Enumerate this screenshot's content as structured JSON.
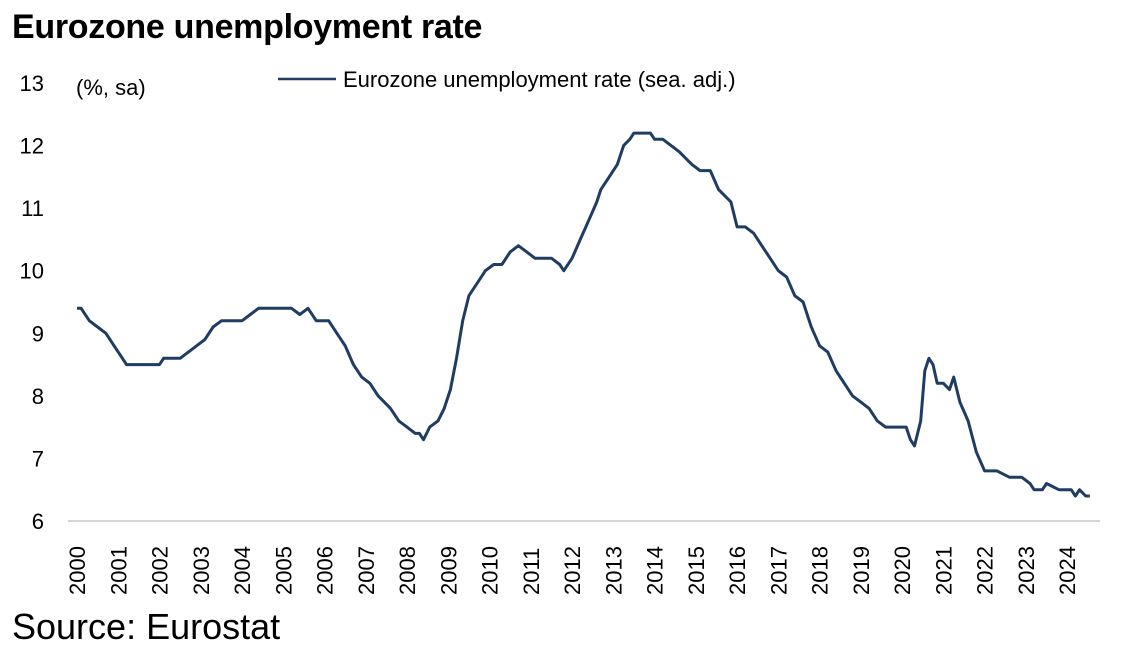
{
  "title": "Eurozone unemployment rate",
  "source": "Source: Eurostat",
  "chart_data": {
    "type": "line",
    "title": "Eurozone unemployment rate",
    "unit_label": "(%, sa)",
    "ylim": [
      6,
      13
    ],
    "y_ticks": [
      "6",
      "7",
      "8",
      "9",
      "10",
      "11",
      "12",
      "13"
    ],
    "x_ticks": [
      "2000",
      "2001",
      "2002",
      "2003",
      "2004",
      "2005",
      "2006",
      "2007",
      "2008",
      "2009",
      "2010",
      "2011",
      "2012",
      "2013",
      "2014",
      "2015",
      "2016",
      "2017",
      "2018",
      "2019",
      "2020",
      "2021",
      "2022",
      "2023",
      "2024"
    ],
    "grid": false,
    "legend_position": "top-center",
    "series": [
      {
        "name": "Eurozone unemployment rate (sea. adj.)",
        "color": "#1f3d63",
        "points": [
          [
            2000.0,
            9.4
          ],
          [
            2000.1,
            9.4
          ],
          [
            2000.3,
            9.2
          ],
          [
            2000.5,
            9.1
          ],
          [
            2000.7,
            9.0
          ],
          [
            2000.9,
            8.8
          ],
          [
            2001.1,
            8.6
          ],
          [
            2001.2,
            8.5
          ],
          [
            2001.5,
            8.5
          ],
          [
            2001.9,
            8.5
          ],
          [
            2002.0,
            8.5
          ],
          [
            2002.1,
            8.6
          ],
          [
            2002.5,
            8.6
          ],
          [
            2002.7,
            8.7
          ],
          [
            2002.9,
            8.8
          ],
          [
            2003.1,
            8.9
          ],
          [
            2003.3,
            9.1
          ],
          [
            2003.5,
            9.2
          ],
          [
            2003.8,
            9.2
          ],
          [
            2004.0,
            9.2
          ],
          [
            2004.2,
            9.3
          ],
          [
            2004.4,
            9.4
          ],
          [
            2004.8,
            9.4
          ],
          [
            2005.0,
            9.4
          ],
          [
            2005.2,
            9.4
          ],
          [
            2005.4,
            9.3
          ],
          [
            2005.6,
            9.4
          ],
          [
            2005.8,
            9.2
          ],
          [
            2006.1,
            9.2
          ],
          [
            2006.3,
            9.0
          ],
          [
            2006.5,
            8.8
          ],
          [
            2006.7,
            8.5
          ],
          [
            2006.9,
            8.3
          ],
          [
            2007.1,
            8.2
          ],
          [
            2007.3,
            8.0
          ],
          [
            2007.6,
            7.8
          ],
          [
            2007.8,
            7.6
          ],
          [
            2008.0,
            7.5
          ],
          [
            2008.2,
            7.4
          ],
          [
            2008.3,
            7.4
          ],
          [
            2008.4,
            7.3
          ],
          [
            2008.55,
            7.5
          ],
          [
            2008.75,
            7.6
          ],
          [
            2008.9,
            7.8
          ],
          [
            2009.05,
            8.1
          ],
          [
            2009.2,
            8.6
          ],
          [
            2009.35,
            9.2
          ],
          [
            2009.5,
            9.6
          ],
          [
            2009.7,
            9.8
          ],
          [
            2009.9,
            10.0
          ],
          [
            2010.1,
            10.1
          ],
          [
            2010.3,
            10.1
          ],
          [
            2010.5,
            10.3
          ],
          [
            2010.7,
            10.4
          ],
          [
            2010.9,
            10.3
          ],
          [
            2011.1,
            10.2
          ],
          [
            2011.3,
            10.2
          ],
          [
            2011.5,
            10.2
          ],
          [
            2011.7,
            10.1
          ],
          [
            2011.8,
            10.0
          ],
          [
            2012.0,
            10.2
          ],
          [
            2012.2,
            10.5
          ],
          [
            2012.4,
            10.8
          ],
          [
            2012.6,
            11.1
          ],
          [
            2012.7,
            11.3
          ],
          [
            2012.9,
            11.5
          ],
          [
            2013.1,
            11.7
          ],
          [
            2013.25,
            12.0
          ],
          [
            2013.4,
            12.1
          ],
          [
            2013.5,
            12.2
          ],
          [
            2013.9,
            12.2
          ],
          [
            2014.0,
            12.1
          ],
          [
            2014.2,
            12.1
          ],
          [
            2014.4,
            12.0
          ],
          [
            2014.6,
            11.9
          ],
          [
            2014.75,
            11.8
          ],
          [
            2014.9,
            11.7
          ],
          [
            2015.1,
            11.6
          ],
          [
            2015.35,
            11.6
          ],
          [
            2015.55,
            11.3
          ],
          [
            2015.85,
            11.1
          ],
          [
            2016.0,
            10.7
          ],
          [
            2016.2,
            10.7
          ],
          [
            2016.4,
            10.6
          ],
          [
            2016.6,
            10.4
          ],
          [
            2016.8,
            10.2
          ],
          [
            2017.0,
            10.0
          ],
          [
            2017.2,
            9.9
          ],
          [
            2017.4,
            9.6
          ],
          [
            2017.6,
            9.5
          ],
          [
            2017.8,
            9.1
          ],
          [
            2018.0,
            8.8
          ],
          [
            2018.2,
            8.7
          ],
          [
            2018.4,
            8.4
          ],
          [
            2018.6,
            8.2
          ],
          [
            2018.8,
            8.0
          ],
          [
            2019.0,
            7.9
          ],
          [
            2019.2,
            7.8
          ],
          [
            2019.4,
            7.6
          ],
          [
            2019.6,
            7.5
          ],
          [
            2019.8,
            7.5
          ],
          [
            2020.0,
            7.5
          ],
          [
            2020.1,
            7.5
          ],
          [
            2020.2,
            7.3
          ],
          [
            2020.3,
            7.2
          ],
          [
            2020.45,
            7.6
          ],
          [
            2020.55,
            8.4
          ],
          [
            2020.65,
            8.6
          ],
          [
            2020.75,
            8.5
          ],
          [
            2020.85,
            8.2
          ],
          [
            2021.0,
            8.2
          ],
          [
            2021.15,
            8.1
          ],
          [
            2021.25,
            8.3
          ],
          [
            2021.4,
            7.9
          ],
          [
            2021.6,
            7.6
          ],
          [
            2021.8,
            7.1
          ],
          [
            2022.0,
            6.8
          ],
          [
            2022.3,
            6.8
          ],
          [
            2022.6,
            6.7
          ],
          [
            2022.9,
            6.7
          ],
          [
            2023.1,
            6.6
          ],
          [
            2023.2,
            6.5
          ],
          [
            2023.4,
            6.5
          ],
          [
            2023.5,
            6.6
          ],
          [
            2023.8,
            6.5
          ],
          [
            2024.1,
            6.5
          ],
          [
            2024.2,
            6.4
          ],
          [
            2024.3,
            6.5
          ],
          [
            2024.45,
            6.4
          ],
          [
            2024.55,
            6.4
          ]
        ]
      }
    ]
  }
}
